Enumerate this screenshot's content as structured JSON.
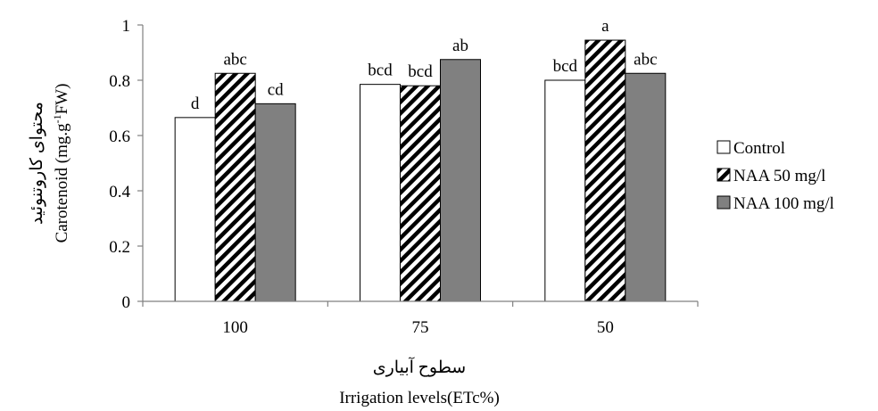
{
  "chart_data": {
    "type": "bar",
    "categories": [
      "100",
      "75",
      "50"
    ],
    "series": [
      {
        "name": "Control",
        "values": [
          0.665,
          0.785,
          0.8
        ],
        "letters": [
          "d",
          "bcd",
          "bcd"
        ],
        "fill": "#ffffff",
        "pattern": "none"
      },
      {
        "name": "NAA 50 mg/l",
        "values": [
          0.825,
          0.78,
          0.945
        ],
        "letters": [
          "abc",
          "bcd",
          "a"
        ],
        "fill": "#ffffff",
        "pattern": "diagonal-hatch"
      },
      {
        "name": "NAA 100 mg/l",
        "values": [
          0.715,
          0.875,
          0.825
        ],
        "letters": [
          "cd",
          "ab",
          "abc"
        ],
        "fill": "#808080",
        "pattern": "none"
      }
    ],
    "yticks": [
      "0",
      "0.2",
      "0.4",
      "0.6",
      "0.8",
      "1"
    ],
    "ylim": [
      0,
      1
    ],
    "ylabel_fa": "محتوای کاروتنوئید",
    "ylabel_en": "Carotenoid (mg.g-1FW)",
    "ylabel_en_parts": {
      "pre": "Carotenoid (mg.g",
      "sup": "-1",
      "post": "FW)"
    },
    "xlabel_fa": "سطوح آبیاری",
    "xlabel_en": "Irrigation levels(ETc%)",
    "legend_position": "right",
    "grid": false
  }
}
